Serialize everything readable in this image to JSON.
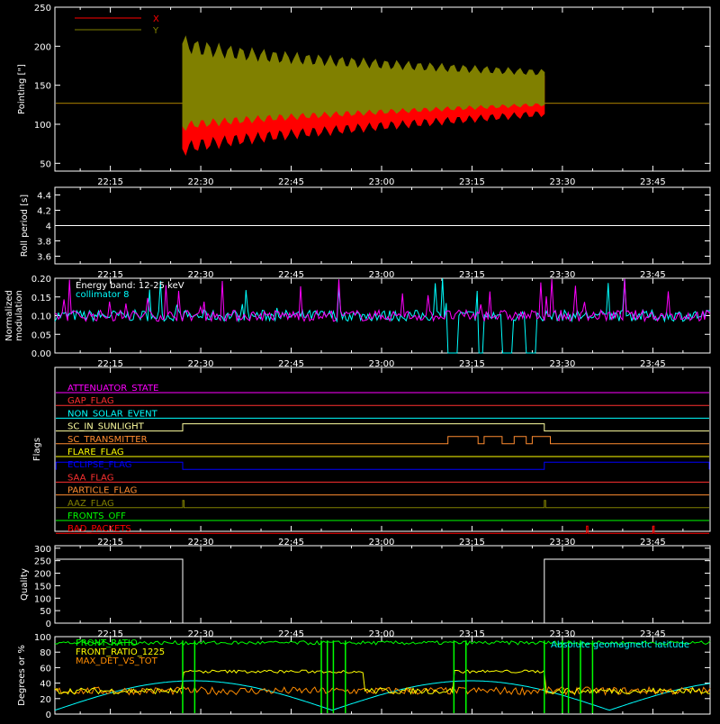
{
  "time_ticks": [
    "22:15",
    "22:30",
    "22:45",
    "23:00",
    "23:15",
    "23:30",
    "23:45"
  ],
  "chart_data": [
    {
      "id": "pointing",
      "type": "line",
      "ylabel": "Pointing [\"]",
      "yticks": [
        50,
        100,
        150,
        200,
        250
      ],
      "ylim": [
        40,
        250
      ],
      "legend": [
        {
          "name": "X",
          "color": "#ff0000"
        },
        {
          "name": "Y",
          "color": "#808000"
        }
      ],
      "series": [
        {
          "name": "X",
          "color": "#ff0000",
          "baseline": 127,
          "active": {
            "start": "22:27",
            "end": "23:27",
            "center_start": 125,
            "center_end": 140,
            "amp_start": 55,
            "amp_end": 25
          }
        },
        {
          "name": "Y",
          "color": "#808000",
          "baseline": 127,
          "active": {
            "start": "22:27",
            "end": "23:27",
            "center_start": 135,
            "center_end": 140,
            "amp_start": 80,
            "amp_end": 30
          }
        }
      ]
    },
    {
      "id": "roll",
      "type": "line",
      "ylabel": "Roll period [s]",
      "yticks": [
        3.6,
        3.8,
        4.0,
        4.2,
        4.4
      ],
      "ylim": [
        3.5,
        4.5
      ],
      "series": [
        {
          "name": "roll",
          "color": "#ffffff",
          "value": 4.0
        }
      ]
    },
    {
      "id": "modulation",
      "type": "line",
      "ylabel": [
        "Normalized",
        "modulation"
      ],
      "yticks": [
        "0.00",
        "0.05",
        "0.10",
        "0.15",
        "0.20"
      ],
      "ylim": [
        0,
        0.2
      ],
      "annotations": [
        {
          "text": "Energy band: 12-25 keV",
          "color": "#ffffff"
        },
        {
          "text": "collimator 8",
          "color": "#00ffff"
        }
      ],
      "series": [
        {
          "name": "collimator 8",
          "color": "#00ffff",
          "typical": 0.1,
          "drops_to_zero": [
            [
              "23:11",
              "23:12"
            ],
            [
              "23:16",
              "23:16"
            ],
            [
              "23:20",
              "23:21"
            ],
            [
              "23:24",
              "23:25"
            ]
          ]
        },
        {
          "name": "magenta",
          "color": "#ff00ff",
          "typical": 0.1
        }
      ]
    },
    {
      "id": "flags",
      "type": "line",
      "ylabel": "Flags",
      "flags": [
        {
          "name": "ATTENUATOR_STATE",
          "color": "#ff00ff",
          "on": []
        },
        {
          "name": "GAP_FLAG",
          "color": "#ff3030",
          "on": []
        },
        {
          "name": "NON_SOLAR_EVENT",
          "color": "#00ffff",
          "on": []
        },
        {
          "name": "SC_IN_SUNLIGHT",
          "color": "#ffffa0",
          "on": [
            [
              "22:27",
              "23:27"
            ]
          ]
        },
        {
          "name": "SC_TRANSMITTER",
          "color": "#ff8c30",
          "on": [
            [
              "23:11",
              "23:16"
            ],
            [
              "23:17",
              "23:20"
            ],
            [
              "23:22",
              "23:24"
            ],
            [
              "23:25",
              "23:28"
            ]
          ]
        },
        {
          "name": "FLARE_FLAG",
          "color": "#ffff00",
          "on": []
        },
        {
          "name": "ECLIPSE_FLAG",
          "color": "#0000ff",
          "on": [
            [
              "22:06",
              "22:27"
            ],
            [
              "23:27",
              "23:55"
            ]
          ]
        },
        {
          "name": "SAA_FLAG",
          "color": "#ff3030",
          "on": []
        },
        {
          "name": "PARTICLE_FLAG",
          "color": "#ff8c30",
          "on": []
        },
        {
          "name": "AAZ_FLAG",
          "color": "#808000",
          "on": [
            [
              "22:27",
              "22:27"
            ],
            [
              "23:27",
              "23:27"
            ]
          ]
        },
        {
          "name": "FRONTS_OFF",
          "color": "#00ff00",
          "on": []
        },
        {
          "name": "BAD_PACKETS",
          "color": "#ff0000",
          "on": [
            [
              "23:34",
              "23:34"
            ],
            [
              "23:45",
              "23:45"
            ]
          ]
        }
      ]
    },
    {
      "id": "quality",
      "type": "line",
      "ylabel": "Quality",
      "yticks": [
        0,
        50,
        100,
        150,
        200,
        250,
        300
      ],
      "ylim": [
        0,
        310
      ],
      "series": [
        {
          "name": "quality",
          "color": "#ffffff",
          "segments": [
            [
              "22:06",
              "22:27",
              256
            ],
            [
              "22:27",
              "23:27",
              0
            ],
            [
              "23:27",
              "23:55",
              256
            ]
          ]
        }
      ]
    },
    {
      "id": "degrees",
      "type": "line",
      "ylabel": "Degrees or %",
      "yticks": [
        0,
        20,
        40,
        60,
        80,
        100
      ],
      "ylim": [
        0,
        100
      ],
      "legend": [
        {
          "name": "FRONT_RATIO",
          "color": "#00ff00"
        },
        {
          "name": "FRONT_RATIO_1225",
          "color": "#ffff00"
        },
        {
          "name": "MAX_DET_VS_TOT",
          "color": "#ff8c00"
        }
      ],
      "annotation_right": {
        "text": "Absolute geomagnetic latitude",
        "color": "#00ffff"
      },
      "series": [
        {
          "name": "FRONT_RATIO",
          "color": "#00ff00",
          "typical": 92
        },
        {
          "name": "FRONT_RATIO_1225",
          "color": "#ffff00",
          "typical": 30,
          "elevated": [
            [
              "22:27",
              "22:57",
              55
            ],
            [
              "23:12",
              "23:27",
              55
            ]
          ]
        },
        {
          "name": "MAX_DET_VS_TOT",
          "color": "#ff8c00",
          "typical": 30
        },
        {
          "name": "Absolute geomagnetic latitude",
          "color": "#00ffff"
        }
      ]
    }
  ]
}
